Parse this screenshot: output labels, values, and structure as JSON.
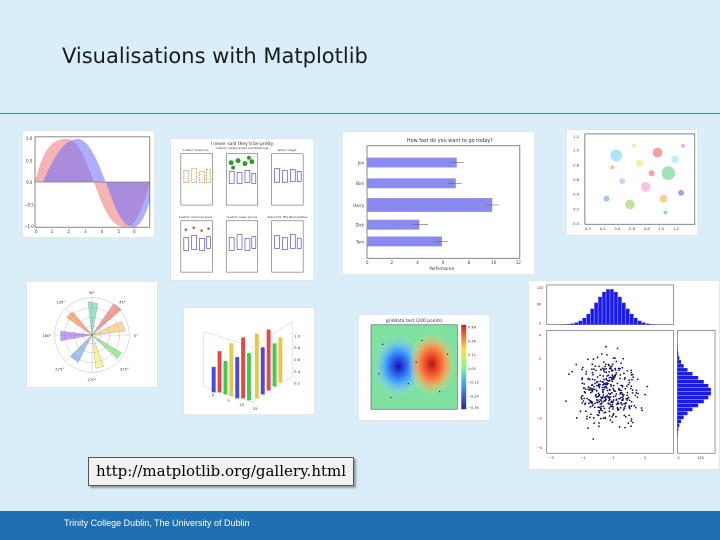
{
  "slide": {
    "title": "Visualisations with Matplotlib",
    "link_text": "http://matplotlib.org/gallery.html",
    "footer_text": "Trinity College Dublin, The University of Dublin"
  },
  "gallery": {
    "boxplot_title": "I never said they'd be pretty",
    "boxplot_subtitles": [
      "Custom boxprops",
      "Custom medianprops and flierprops",
      "whis='range'",
      "Custom mean as point",
      "Custom mean as line",
      "whis=[15, 85] #percentiles"
    ],
    "barh": {
      "title": "How fast do you want to go today?",
      "xlabel": "Performance",
      "people": [
        "Jim",
        "Slim",
        "Harry",
        "Dick",
        "Tom"
      ]
    },
    "contour_title": "griddata test (200 points)",
    "polar_angle_labels": [
      "90°",
      "45°",
      "0°",
      "315°",
      "270°",
      "225°",
      "180°",
      "135°"
    ]
  },
  "colors": {
    "background": "#daeef9",
    "footer": "#1f6fb2",
    "rule": "#3f7fb0"
  }
}
